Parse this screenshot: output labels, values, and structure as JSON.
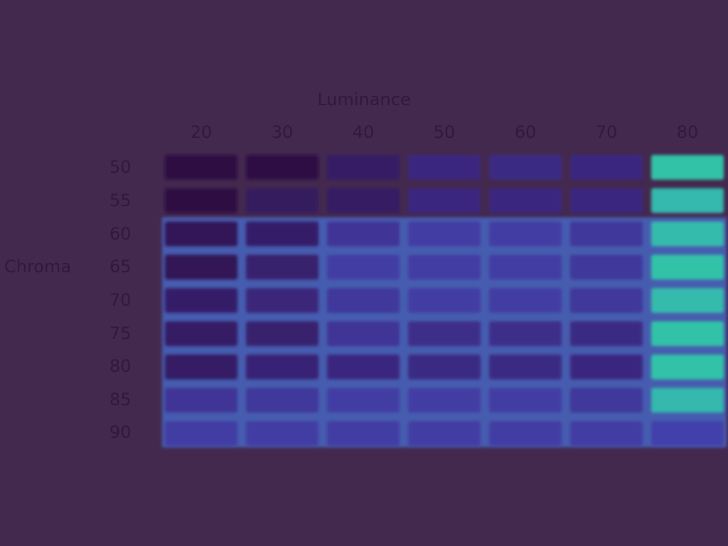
{
  "chart_data": {
    "type": "heatmap",
    "title": "",
    "xlabel": "Luminance",
    "ylabel": "Chroma",
    "x": [
      "20",
      "30",
      "40",
      "50",
      "60",
      "70",
      "80"
    ],
    "y": [
      "50",
      "55",
      "60",
      "65",
      "70",
      "75",
      "80",
      "85",
      "90"
    ],
    "values": [
      [
        0.02,
        0.03,
        0.18,
        0.3,
        0.32,
        0.3,
        0.95
      ],
      [
        0.02,
        0.15,
        0.17,
        0.3,
        0.3,
        0.3,
        0.92
      ],
      [
        0.12,
        0.2,
        0.4,
        0.45,
        0.45,
        0.42,
        0.93
      ],
      [
        0.1,
        0.22,
        0.45,
        0.45,
        0.45,
        0.42,
        0.95
      ],
      [
        0.2,
        0.28,
        0.42,
        0.45,
        0.45,
        0.42,
        0.93
      ],
      [
        0.18,
        0.22,
        0.4,
        0.35,
        0.35,
        0.32,
        0.95
      ],
      [
        0.18,
        0.25,
        0.3,
        0.32,
        0.32,
        0.3,
        0.95
      ],
      [
        0.4,
        0.42,
        0.45,
        0.45,
        0.45,
        0.42,
        0.92
      ],
      [
        0.45,
        0.45,
        0.45,
        0.45,
        0.45,
        0.45,
        0.48
      ]
    ],
    "colorscale": [
      "#2e0e3e",
      "#3c2a86",
      "#4d5ed8",
      "#2ed4a0"
    ],
    "grid_color": "#4a88ff",
    "grid": true,
    "legend": "none"
  }
}
